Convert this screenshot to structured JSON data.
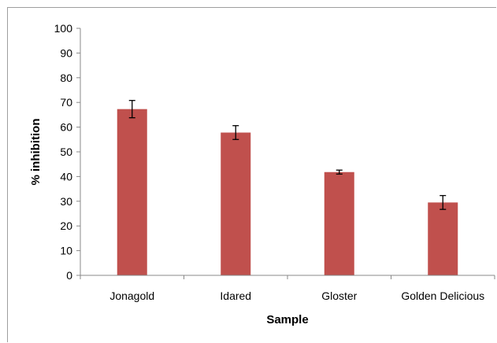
{
  "chart_data": {
    "type": "bar",
    "categories": [
      "Jonagold",
      "Idared",
      "Gloster",
      "Golden Delicious"
    ],
    "series": [
      {
        "values": [
          67.3,
          57.8,
          41.8,
          29.5
        ],
        "errors": [
          3.5,
          2.8,
          0.8,
          2.8
        ]
      }
    ],
    "xlabel": "Sample",
    "ylabel": "% inhibition",
    "ylim": [
      0,
      100
    ],
    "ytick_step": 10,
    "bar_color": "#c0504d",
    "error_color": "#000000",
    "grid": false,
    "legend": "none"
  }
}
